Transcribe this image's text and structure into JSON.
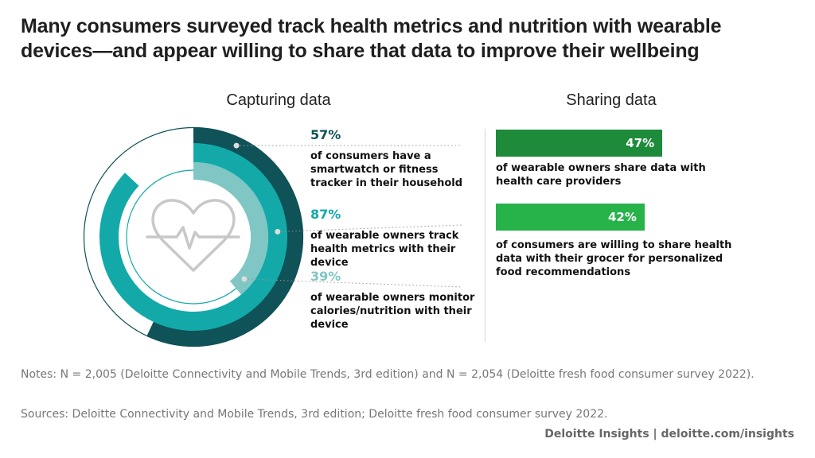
{
  "title": "Many consumers surveyed track health metrics and nutrition with wearable devices—and appear willing to share that data to improve their wellbeing",
  "chart_data": [
    {
      "type": "radial",
      "title": "Capturing data",
      "categories": [
        "of consumers have a smartwatch or fitness tracker in their household",
        "of wearable owners track health metrics with their device",
        "of wearable owners monitor calories/nutrition with their device"
      ],
      "values": [
        57,
        87,
        39
      ],
      "value_labels": [
        "57%",
        "87%",
        "39%"
      ],
      "colors": [
        "#0f5257",
        "#13a9a9",
        "#7fc6c4"
      ]
    },
    {
      "type": "bar",
      "title": "Sharing data",
      "categories": [
        "of wearable owners share data with health care providers",
        "of consumers are willing to share health data with their grocer for personalized food recommendations"
      ],
      "values": [
        47,
        42
      ],
      "value_labels": [
        "47%",
        "42%"
      ],
      "colors": [
        "#1e8b3b",
        "#27b24a"
      ]
    }
  ],
  "notes": "Notes: N = 2,005 (Deloitte Connectivity and Mobile Trends, 3rd edition) and N = 2,054 (Deloitte fresh food consumer survey 2022).",
  "sources": "Sources: Deloitte Connectivity and Mobile Trends, 3rd edition; Deloitte fresh food consumer survey 2022.",
  "footer": "Deloitte Insights | deloitte.com/insights"
}
